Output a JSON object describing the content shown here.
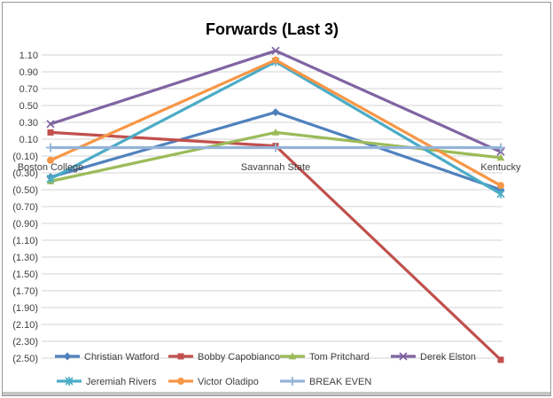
{
  "window": {
    "background": "#ffffff",
    "border_color": "#979797"
  },
  "chart_data": {
    "type": "line",
    "title": "Forwards (Last 3)",
    "title_color": "#000000",
    "text_color": "#404040",
    "gridlines": true,
    "gridline_color": "#D3D3D3",
    "categories": [
      "Boston College",
      "Savannah State",
      "Kentucky"
    ],
    "series": [
      {
        "name": "Christian Watford",
        "color": "#4F81BD",
        "marker": "diamond",
        "values": [
          -0.35,
          0.42,
          -0.5
        ]
      },
      {
        "name": "Bobby Capobianco",
        "color": "#C0504D",
        "marker": "square",
        "values": [
          0.18,
          0.02,
          -2.52
        ]
      },
      {
        "name": "Tom Pritchard",
        "color": "#9BBB59",
        "marker": "triangle",
        "values": [
          -0.4,
          0.18,
          -0.12
        ]
      },
      {
        "name": "Derek Elston",
        "color": "#8064A2",
        "marker": "x",
        "values": [
          0.28,
          1.15,
          -0.05
        ]
      },
      {
        "name": "Jeremiah Rivers",
        "color": "#4BACC6",
        "marker": "asterisk",
        "values": [
          -0.37,
          1.02,
          -0.55
        ]
      },
      {
        "name": "Victor Oladipo",
        "color": "#F79646",
        "marker": "circle",
        "values": [
          -0.15,
          1.04,
          -0.45
        ]
      },
      {
        "name": "BREAK EVEN",
        "color": "#95B3D7",
        "marker": "plus",
        "values": [
          0.0,
          0.0,
          0.0
        ]
      }
    ],
    "y_axis": {
      "max": 1.1,
      "min": -2.5,
      "step": 0.2,
      "negative_format": "parentheses",
      "tick_labels": [
        "1.10",
        "0.90",
        "0.70",
        "0.50",
        "0.30",
        "0.10",
        "(0.10)",
        "(0.30)",
        "(0.50)",
        "(0.70)",
        "(0.90)",
        "(1.10)",
        "(1.30)",
        "(1.50)",
        "(1.70)",
        "(1.90)",
        "(2.10)",
        "(2.30)",
        "(2.50)"
      ]
    },
    "legend": {
      "position": "bottom",
      "rows": [
        [
          "Christian Watford",
          "Bobby Capobianco",
          "Tom Pritchard",
          "Derek Elston"
        ],
        [
          "Jeremiah Rivers",
          "Victor Oladipo",
          "BREAK EVEN"
        ]
      ]
    }
  }
}
